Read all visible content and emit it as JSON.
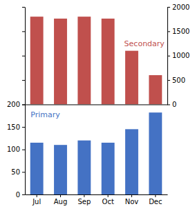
{
  "chart_data": [
    {
      "type": "bar",
      "categories": [
        "Jul",
        "Aug",
        "Sep",
        "Oct",
        "Nov",
        "Dec"
      ],
      "values": [
        1800,
        1760,
        1800,
        1760,
        1100,
        600
      ],
      "color": "#C0504D",
      "ylim": [
        0,
        2000
      ],
      "yticks": [
        0,
        500,
        1000,
        1500,
        2000
      ],
      "annotation": "Secondary",
      "tick_labels": "y"
    },
    {
      "type": "bar",
      "categories": [
        "Jul",
        "Aug",
        "Sep",
        "Oct",
        "Nov",
        "Dec"
      ],
      "values": [
        115,
        110,
        120,
        115,
        145,
        182
      ],
      "color": "#4472C4",
      "ylim": [
        0,
        200
      ],
      "yticks": [
        0,
        50,
        100,
        150,
        200
      ],
      "annotation": "Primary"
    }
  ]
}
